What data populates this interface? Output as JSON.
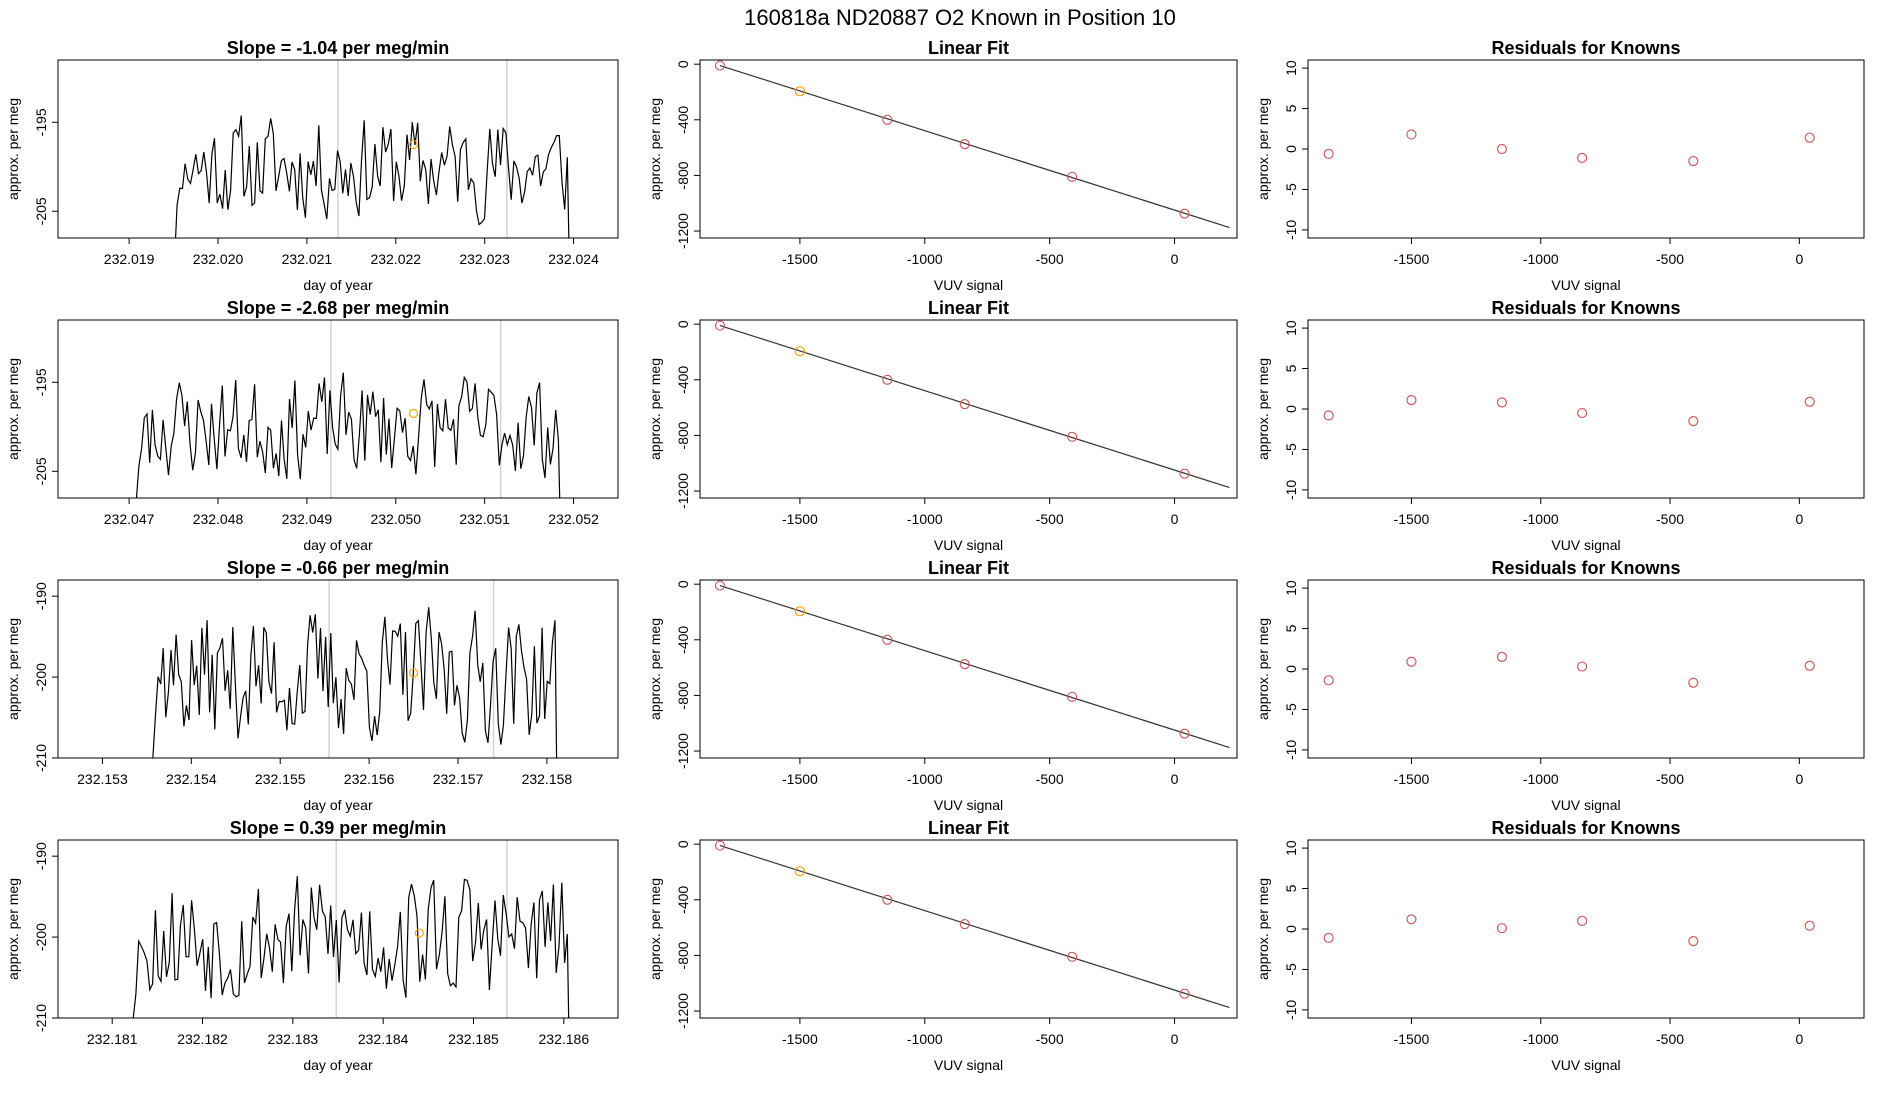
{
  "figure": {
    "title": "160818a     ND20887   O2 Known in Position  10"
  },
  "chart_data": [
    {
      "type": "line",
      "panel": "time",
      "row": 1,
      "title": "Slope =  -1.04  per meg/min",
      "xlabel": "day of year",
      "ylabel": "approx. per meg",
      "xlim": [
        232.0182,
        232.0245
      ],
      "ylim": [
        -208,
        -188
      ],
      "x_ticks": [
        232.019,
        232.02,
        232.021,
        232.022,
        232.023,
        232.024
      ],
      "x_tick_labels": [
        "232.019",
        "232.020",
        "232.021",
        "232.022",
        "232.023",
        "232.024"
      ],
      "y_ticks": [
        -205,
        -195
      ],
      "y_tick_labels": [
        "-205",
        "-195"
      ],
      "vlines": [
        232.02135,
        232.02325
      ],
      "marker": {
        "x": 232.0222,
        "y": -197.5,
        "color": "#ffa500"
      },
      "series": [
        {
          "x_start": 232.01948,
          "x_end": 232.02396,
          "n": 150,
          "mean": -200,
          "amp": 5,
          "seed": 11,
          "color": "#000000"
        }
      ]
    },
    {
      "type": "scatter",
      "panel": "fit",
      "row": 1,
      "title": "Linear Fit",
      "xlabel": "VUV signal",
      "ylabel": "approx. per meg",
      "xlim": [
        -1900,
        250
      ],
      "ylim": [
        -1250,
        30
      ],
      "x_ticks": [
        -1500,
        -1000,
        -500,
        0
      ],
      "x_tick_labels": [
        "-1500",
        "-1000",
        "-500",
        "0"
      ],
      "y_ticks": [
        0,
        -400,
        -800,
        -1200
      ],
      "y_tick_labels": [
        "0",
        "-400",
        "-800",
        "-1200"
      ],
      "points": {
        "x": [
          -1820,
          -1500,
          -1150,
          -840,
          -410,
          40
        ],
        "y": [
          -10,
          -195,
          -400,
          -575,
          -810,
          -1075
        ],
        "colors": [
          "#cd5c5c",
          "#ffa500",
          "#cd5c5c",
          "#cd5c5c",
          "#cd5c5c",
          "#cd5c5c"
        ]
      },
      "fit_line": {
        "x": [
          -1820,
          220
        ],
        "y": [
          -10,
          -1175
        ],
        "color": "#333333"
      }
    },
    {
      "type": "scatter",
      "panel": "residuals",
      "row": 1,
      "title": "Residuals for Knowns",
      "xlabel": "VUV signal",
      "ylabel": "approx. per meg",
      "xlim": [
        -1900,
        250
      ],
      "ylim": [
        -11,
        11
      ],
      "x_ticks": [
        -1500,
        -1000,
        -500,
        0
      ],
      "x_tick_labels": [
        "-1500",
        "-1000",
        "-500",
        "0"
      ],
      "y_ticks": [
        10,
        5,
        0,
        -5,
        -10
      ],
      "y_tick_labels": [
        "10",
        "5",
        "0",
        "-5",
        "-10"
      ],
      "points": {
        "x": [
          -1820,
          -1500,
          -1150,
          -840,
          -410,
          40
        ],
        "y": [
          -0.6,
          1.8,
          0.0,
          -1.1,
          -1.5,
          1.4
        ],
        "color": "#cd5c5c"
      }
    },
    {
      "type": "line",
      "panel": "time",
      "row": 2,
      "title": "Slope =  -2.68  per meg/min",
      "xlabel": "day of year",
      "ylabel": "approx. per meg",
      "xlim": [
        232.0462,
        232.0525
      ],
      "ylim": [
        -208,
        -188
      ],
      "x_ticks": [
        232.047,
        232.048,
        232.049,
        232.05,
        232.051,
        232.052
      ],
      "x_tick_labels": [
        "232.047",
        "232.048",
        "232.049",
        "232.050",
        "232.051",
        "232.052"
      ],
      "y_ticks": [
        -205,
        -195
      ],
      "y_tick_labels": [
        "-205",
        "-195"
      ],
      "vlines": [
        232.04927,
        232.05118
      ],
      "marker": {
        "x": 232.0502,
        "y": -198.5,
        "color": "#ffa500"
      },
      "series": [
        {
          "x_start": 232.04705,
          "x_end": 232.05186,
          "n": 160,
          "mean": -200,
          "amp": 5,
          "seed": 23,
          "color": "#000000"
        }
      ]
    },
    {
      "type": "scatter",
      "panel": "fit",
      "row": 2,
      "title": "Linear Fit",
      "xlabel": "VUV signal",
      "ylabel": "approx. per meg",
      "xlim": [
        -1900,
        250
      ],
      "ylim": [
        -1250,
        30
      ],
      "x_ticks": [
        -1500,
        -1000,
        -500,
        0
      ],
      "x_tick_labels": [
        "-1500",
        "-1000",
        "-500",
        "0"
      ],
      "y_ticks": [
        0,
        -400,
        -800,
        -1200
      ],
      "y_tick_labels": [
        "0",
        "-400",
        "-800",
        "-1200"
      ],
      "points": {
        "x": [
          -1820,
          -1500,
          -1150,
          -840,
          -410,
          40
        ],
        "y": [
          -10,
          -195,
          -400,
          -575,
          -810,
          -1075
        ],
        "colors": [
          "#cd5c5c",
          "#ffa500",
          "#cd5c5c",
          "#cd5c5c",
          "#cd5c5c",
          "#cd5c5c"
        ]
      },
      "fit_line": {
        "x": [
          -1820,
          220
        ],
        "y": [
          -10,
          -1175
        ],
        "color": "#333333"
      }
    },
    {
      "type": "scatter",
      "panel": "residuals",
      "row": 2,
      "title": "Residuals for Knowns",
      "xlabel": "VUV signal",
      "ylabel": "approx. per meg",
      "xlim": [
        -1900,
        250
      ],
      "ylim": [
        -11,
        11
      ],
      "x_ticks": [
        -1500,
        -1000,
        -500,
        0
      ],
      "x_tick_labels": [
        "-1500",
        "-1000",
        "-500",
        "0"
      ],
      "y_ticks": [
        10,
        5,
        0,
        -5,
        -10
      ],
      "y_tick_labels": [
        "10",
        "5",
        "0",
        "-5",
        "-10"
      ],
      "points": {
        "x": [
          -1820,
          -1500,
          -1150,
          -840,
          -410,
          40
        ],
        "y": [
          -0.8,
          1.1,
          0.8,
          -0.5,
          -1.5,
          0.9
        ],
        "color": "#cd5c5c"
      }
    },
    {
      "type": "line",
      "panel": "time",
      "row": 3,
      "title": "Slope =  -0.66  per meg/min",
      "xlabel": "day of year",
      "ylabel": "approx. per meg",
      "xlim": [
        232.1525,
        232.1588
      ],
      "ylim": [
        -210,
        -188
      ],
      "x_ticks": [
        232.153,
        232.154,
        232.155,
        232.156,
        232.157,
        232.158
      ],
      "x_tick_labels": [
        "232.153",
        "232.154",
        "232.155",
        "232.156",
        "232.157",
        "232.158"
      ],
      "y_ticks": [
        -210,
        -200,
        -190
      ],
      "y_tick_labels": [
        "-210",
        "-200",
        "-190"
      ],
      "vlines": [
        232.15555,
        232.1574
      ],
      "marker": {
        "x": 232.1565,
        "y": -199.5,
        "color": "#ffa500"
      },
      "series": [
        {
          "x_start": 232.15351,
          "x_end": 232.15812,
          "n": 160,
          "mean": -200,
          "amp": 7,
          "seed": 37,
          "color": "#000000"
        }
      ]
    },
    {
      "type": "scatter",
      "panel": "fit",
      "row": 3,
      "title": "Linear Fit",
      "xlabel": "VUV signal",
      "ylabel": "approx. per meg",
      "xlim": [
        -1900,
        250
      ],
      "ylim": [
        -1250,
        30
      ],
      "x_ticks": [
        -1500,
        -1000,
        -500,
        0
      ],
      "x_tick_labels": [
        "-1500",
        "-1000",
        "-500",
        "0"
      ],
      "y_ticks": [
        0,
        -400,
        -800,
        -1200
      ],
      "y_tick_labels": [
        "0",
        "-400",
        "-800",
        "-1200"
      ],
      "points": {
        "x": [
          -1820,
          -1500,
          -1150,
          -840,
          -410,
          40
        ],
        "y": [
          -10,
          -195,
          -400,
          -575,
          -810,
          -1075
        ],
        "colors": [
          "#cd5c5c",
          "#ffa500",
          "#cd5c5c",
          "#cd5c5c",
          "#cd5c5c",
          "#cd5c5c"
        ]
      },
      "fit_line": {
        "x": [
          -1820,
          220
        ],
        "y": [
          -10,
          -1175
        ],
        "color": "#333333"
      }
    },
    {
      "type": "scatter",
      "panel": "residuals",
      "row": 3,
      "title": "Residuals for Knowns",
      "xlabel": "VUV signal",
      "ylabel": "approx. per meg",
      "xlim": [
        -1900,
        250
      ],
      "ylim": [
        -11,
        11
      ],
      "x_ticks": [
        -1500,
        -1000,
        -500,
        0
      ],
      "x_tick_labels": [
        "-1500",
        "-1000",
        "-500",
        "0"
      ],
      "y_ticks": [
        10,
        5,
        0,
        -5,
        -10
      ],
      "y_tick_labels": [
        "10",
        "5",
        "0",
        "-5",
        "-10"
      ],
      "points": {
        "x": [
          -1820,
          -1500,
          -1150,
          -840,
          -410,
          40
        ],
        "y": [
          -1.4,
          0.9,
          1.5,
          0.3,
          -1.7,
          0.4
        ],
        "color": "#cd5c5c"
      }
    },
    {
      "type": "line",
      "panel": "time",
      "row": 4,
      "title": "Slope =  0.39  per meg/min",
      "xlabel": "day of year",
      "ylabel": "approx. per meg",
      "xlim": [
        232.1804,
        232.1866
      ],
      "ylim": [
        -210,
        -188
      ],
      "x_ticks": [
        232.181,
        232.182,
        232.183,
        232.184,
        232.185,
        232.186
      ],
      "x_tick_labels": [
        "232.181",
        "232.182",
        "232.183",
        "232.184",
        "232.185",
        "232.186"
      ],
      "y_ticks": [
        -210,
        -200,
        -190
      ],
      "y_tick_labels": [
        "-210",
        "-200",
        "-190"
      ],
      "vlines": [
        232.18348,
        232.18537
      ],
      "marker": {
        "x": 232.1844,
        "y": -199.5,
        "color": "#ffa500"
      },
      "series": [
        {
          "x_start": 232.18117,
          "x_end": 232.18607,
          "n": 160,
          "mean": -200,
          "amp": 7,
          "seed": 53,
          "color": "#000000"
        }
      ]
    },
    {
      "type": "scatter",
      "panel": "fit",
      "row": 4,
      "title": "Linear Fit",
      "xlabel": "VUV signal",
      "ylabel": "approx. per meg",
      "xlim": [
        -1900,
        250
      ],
      "ylim": [
        -1250,
        30
      ],
      "x_ticks": [
        -1500,
        -1000,
        -500,
        0
      ],
      "x_tick_labels": [
        "-1500",
        "-1000",
        "-500",
        "0"
      ],
      "y_ticks": [
        0,
        -400,
        -800,
        -1200
      ],
      "y_tick_labels": [
        "0",
        "-400",
        "-800",
        "-1200"
      ],
      "points": {
        "x": [
          -1820,
          -1500,
          -1150,
          -840,
          -410,
          40
        ],
        "y": [
          -10,
          -195,
          -400,
          -575,
          -810,
          -1075
        ],
        "colors": [
          "#cd5c5c",
          "#ffa500",
          "#cd5c5c",
          "#cd5c5c",
          "#cd5c5c",
          "#cd5c5c"
        ]
      },
      "fit_line": {
        "x": [
          -1820,
          220
        ],
        "y": [
          -10,
          -1175
        ],
        "color": "#333333"
      }
    },
    {
      "type": "scatter",
      "panel": "residuals",
      "row": 4,
      "title": "Residuals for Knowns",
      "xlabel": "VUV signal",
      "ylabel": "approx. per meg",
      "xlim": [
        -1900,
        250
      ],
      "ylim": [
        -11,
        11
      ],
      "x_ticks": [
        -1500,
        -1000,
        -500,
        0
      ],
      "x_tick_labels": [
        "-1500",
        "-1000",
        "-500",
        "0"
      ],
      "y_ticks": [
        10,
        5,
        0,
        -5,
        -10
      ],
      "y_tick_labels": [
        "10",
        "5",
        "0",
        "-5",
        "-10"
      ],
      "points": {
        "x": [
          -1820,
          -1500,
          -1150,
          -840,
          -410,
          40
        ],
        "y": [
          -1.1,
          1.2,
          0.1,
          1.0,
          -1.5,
          0.4
        ],
        "color": "#cd5c5c"
      }
    }
  ]
}
